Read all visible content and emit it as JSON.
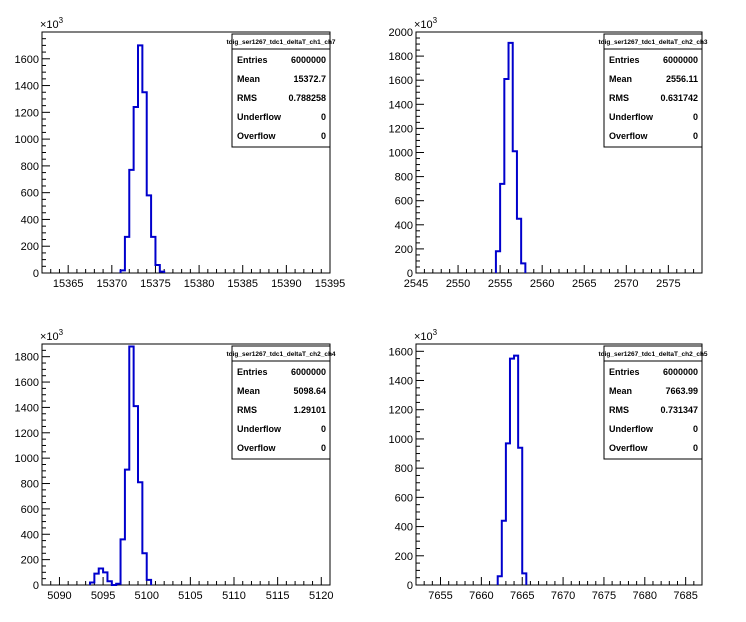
{
  "colors": {
    "line": "#0000cc",
    "axis": "#000000",
    "background": "#ffffff"
  },
  "stats_labels": {
    "entries": "Entries",
    "mean": "Mean",
    "rms": "RMS",
    "underflow": "Underflow",
    "overflow": "Overflow"
  },
  "chart_data": [
    {
      "type": "histogram",
      "title": "tdig_ser1267_tdc1_deltaT_ch1_ch7",
      "y_multiplier": "×10",
      "y_multiplier_exp": "3",
      "xlim": [
        15362,
        15395
      ],
      "ylim": [
        0,
        1800
      ],
      "x_ticks": [
        15365,
        15370,
        15375,
        15380,
        15385,
        15390,
        15395
      ],
      "y_ticks": [
        0,
        200,
        400,
        600,
        800,
        1000,
        1200,
        1400,
        1600
      ],
      "bins": {
        "start": 15371,
        "width": 0.5,
        "values": [
          20,
          270,
          770,
          1240,
          1700,
          1350,
          580,
          270,
          60,
          10
        ]
      },
      "stats": {
        "entries": "6000000",
        "mean": "15372.7",
        "rms": "0.788258",
        "underflow": "0",
        "overflow": "0"
      }
    },
    {
      "type": "histogram",
      "title": "tdig_ser1267_tdc1_deltaT_ch2_ch3",
      "y_multiplier": "×10",
      "y_multiplier_exp": "3",
      "xlim": [
        2545,
        2579
      ],
      "ylim": [
        0,
        2000
      ],
      "x_ticks": [
        2545,
        2550,
        2555,
        2560,
        2565,
        2570,
        2575
      ],
      "y_ticks": [
        0,
        200,
        400,
        600,
        800,
        1000,
        1200,
        1400,
        1600,
        1800,
        2000
      ],
      "bins": {
        "start": 2554.5,
        "width": 0.5,
        "values": [
          180,
          740,
          1610,
          1910,
          1010,
          450,
          80
        ]
      },
      "stats": {
        "entries": "6000000",
        "mean": "2556.11",
        "rms": "0.631742",
        "underflow": "0",
        "overflow": "0"
      }
    },
    {
      "type": "histogram",
      "title": "tdig_ser1267_tdc1_deltaT_ch2_ch4",
      "y_multiplier": "×10",
      "y_multiplier_exp": "3",
      "xlim": [
        5088,
        5121
      ],
      "ylim": [
        0,
        1900
      ],
      "x_ticks": [
        5090,
        5095,
        5100,
        5105,
        5110,
        5115,
        5120
      ],
      "y_ticks": [
        0,
        200,
        400,
        600,
        800,
        1000,
        1200,
        1400,
        1600,
        1800
      ],
      "bins": {
        "start": 5093.5,
        "width": 0.5,
        "values": [
          20,
          90,
          130,
          100,
          30,
          0,
          10,
          360,
          910,
          1880,
          1410,
          810,
          250,
          40
        ]
      },
      "stats": {
        "entries": "6000000",
        "mean": "5098.64",
        "rms": "1.29101",
        "underflow": "0",
        "overflow": "0"
      }
    },
    {
      "type": "histogram",
      "title": "tdig_ser1267_tdc1_deltaT_ch2_ch5",
      "y_multiplier": "×10",
      "y_multiplier_exp": "3",
      "xlim": [
        7652,
        7687
      ],
      "ylim": [
        0,
        1650
      ],
      "x_ticks": [
        7655,
        7660,
        7665,
        7670,
        7675,
        7680,
        7685
      ],
      "y_ticks": [
        0,
        200,
        400,
        600,
        800,
        1000,
        1200,
        1400,
        1600
      ],
      "bins": {
        "start": 7662,
        "width": 0.5,
        "values": [
          60,
          440,
          970,
          1550,
          1570,
          940,
          80
        ]
      },
      "stats": {
        "entries": "6000000",
        "mean": "7663.99",
        "rms": "0.731347",
        "underflow": "0",
        "overflow": "0"
      }
    }
  ]
}
